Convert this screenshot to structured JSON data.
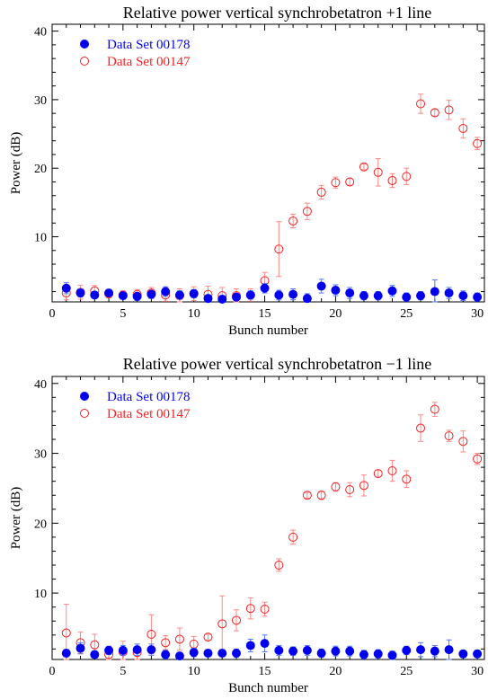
{
  "colors": {
    "series_a": "#0000ee",
    "series_b": "#ee2222",
    "series_b_err": "#ff8888",
    "series_a_err": "#5577ff"
  },
  "chart_data": [
    {
      "type": "scatter",
      "title": "Relative power vertical synchrobetatron +1 line",
      "xlabel": "Bunch number",
      "ylabel": "Power (dB)",
      "xlim": [
        0,
        30.5
      ],
      "ylim": [
        0.5,
        41
      ],
      "xticks": [
        0,
        5,
        10,
        15,
        20,
        25,
        30
      ],
      "yticks": [
        10,
        20,
        30,
        40
      ],
      "legend_position": "top-left",
      "series": [
        {
          "name": "Data Set 00178",
          "marker": "filled-circle",
          "x": [
            1,
            2,
            3,
            4,
            5,
            6,
            7,
            8,
            9,
            10,
            11,
            12,
            13,
            14,
            15,
            16,
            17,
            18,
            19,
            20,
            21,
            22,
            23,
            24,
            25,
            26,
            27,
            28,
            29,
            30
          ],
          "y": [
            2.5,
            1.8,
            1.5,
            1.8,
            1.4,
            1.3,
            1.6,
            2.0,
            1.5,
            1.7,
            1.0,
            0.9,
            1.2,
            1.5,
            2.5,
            1.5,
            1.6,
            1.0,
            2.8,
            2.2,
            1.8,
            1.4,
            1.4,
            2.1,
            1.2,
            1.4,
            2.0,
            1.8,
            1.4,
            1.2
          ],
          "err": [
            0.8,
            0.6,
            0.5,
            0.5,
            0.5,
            0.6,
            0.6,
            0.7,
            0.6,
            0.6,
            0.5,
            0.5,
            0.5,
            0.6,
            0.7,
            0.7,
            0.8,
            0.7,
            1.0,
            0.8,
            0.8,
            0.6,
            0.6,
            0.8,
            0.6,
            0.6,
            1.7,
            0.8,
            0.7,
            0.6
          ]
        },
        {
          "name": "Data Set 00147",
          "marker": "open-circle",
          "x": [
            1,
            2,
            3,
            4,
            5,
            6,
            7,
            8,
            9,
            10,
            11,
            12,
            13,
            14,
            15,
            16,
            17,
            18,
            19,
            20,
            21,
            22,
            23,
            24,
            25,
            26,
            27,
            28,
            29,
            30
          ],
          "y": [
            1.8,
            1.9,
            2.1,
            1.7,
            1.5,
            1.6,
            1.8,
            1.5,
            1.4,
            1.7,
            1.6,
            1.4,
            1.4,
            1.5,
            3.6,
            8.2,
            12.3,
            13.7,
            16.5,
            17.9,
            18.0,
            20.2,
            19.4,
            18.2,
            18.8,
            29.4,
            28.1,
            28.5,
            25.8,
            23.6
          ],
          "err": [
            1.0,
            1.0,
            0.8,
            0.6,
            0.6,
            0.7,
            0.8,
            0.9,
            1.0,
            1.0,
            1.2,
            1.2,
            1.0,
            0.9,
            1.2,
            4.0,
            1.0,
            1.2,
            1.0,
            0.8,
            0.5,
            0.4,
            2.0,
            1.0,
            1.2,
            1.4,
            0.5,
            1.4,
            1.4,
            0.9
          ]
        }
      ]
    },
    {
      "type": "scatter",
      "title": "Relative power vertical synchrobetatron −1 line",
      "xlabel": "Bunch number",
      "ylabel": "Power (dB)",
      "xlim": [
        0,
        30.5
      ],
      "ylim": [
        0.5,
        41
      ],
      "xticks": [
        0,
        5,
        10,
        15,
        20,
        25,
        30
      ],
      "yticks": [
        10,
        20,
        30,
        40
      ],
      "legend_position": "top-left",
      "series": [
        {
          "name": "Data Set 00178",
          "marker": "filled-circle",
          "x": [
            1,
            2,
            3,
            4,
            5,
            6,
            7,
            8,
            9,
            10,
            11,
            12,
            13,
            14,
            15,
            16,
            17,
            18,
            19,
            20,
            21,
            22,
            23,
            24,
            25,
            26,
            27,
            28,
            29,
            30
          ],
          "y": [
            1.4,
            2.1,
            1.2,
            1.8,
            1.8,
            1.9,
            1.9,
            1.2,
            1.0,
            1.5,
            1.4,
            1.4,
            1.4,
            2.5,
            2.8,
            1.8,
            1.7,
            1.8,
            1.4,
            1.7,
            1.7,
            1.2,
            1.3,
            1.1,
            1.8,
            1.9,
            1.7,
            1.9,
            1.3,
            1.3
          ],
          "err": [
            0.5,
            0.8,
            0.5,
            0.6,
            0.7,
            0.8,
            0.8,
            0.6,
            0.5,
            0.6,
            0.5,
            0.5,
            0.6,
            0.9,
            1.2,
            0.7,
            0.6,
            0.7,
            0.6,
            0.7,
            0.7,
            0.6,
            0.6,
            0.6,
            0.6,
            1.0,
            0.8,
            1.4,
            0.5,
            0.5
          ]
        },
        {
          "name": "Data Set 00147",
          "marker": "open-circle",
          "x": [
            1,
            2,
            3,
            4,
            5,
            6,
            7,
            8,
            9,
            10,
            11,
            12,
            13,
            14,
            15,
            16,
            17,
            18,
            19,
            20,
            21,
            22,
            23,
            24,
            25,
            26,
            27,
            28,
            29,
            30
          ],
          "y": [
            4.3,
            2.9,
            2.6,
            1.2,
            1.6,
            1.5,
            4.1,
            2.9,
            3.4,
            2.7,
            3.7,
            5.6,
            6.1,
            7.8,
            7.7,
            14.0,
            18.0,
            24.0,
            24.0,
            25.2,
            24.8,
            25.4,
            27.1,
            27.5,
            26.3,
            33.6,
            36.3,
            32.5,
            31.7,
            29.2
          ],
          "err": [
            4.1,
            1.5,
            1.5,
            1.0,
            1.5,
            1.2,
            2.8,
            1.0,
            1.6,
            1.1,
            0.4,
            4.0,
            1.5,
            1.5,
            1.0,
            0.9,
            1.0,
            0.4,
            0.6,
            0.6,
            1.0,
            1.5,
            0.5,
            1.5,
            1.2,
            1.9,
            1.0,
            0.8,
            1.5,
            0.8
          ]
        }
      ]
    }
  ]
}
